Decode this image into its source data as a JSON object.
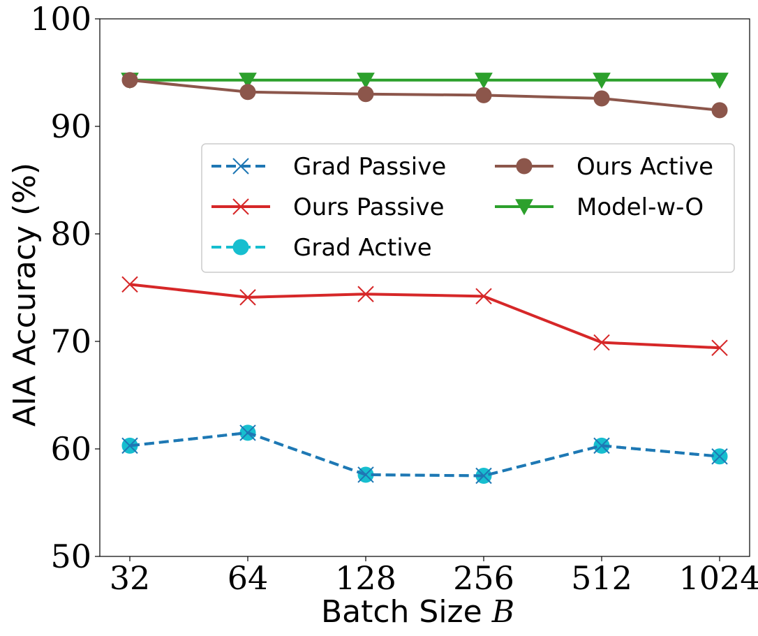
{
  "chart_data": {
    "type": "line",
    "categories": [
      "32",
      "64",
      "128",
      "256",
      "512",
      "1024"
    ],
    "xlabel": "Batch Size ",
    "xlabel_var": "B",
    "ylabel": "AIA Accuracy (%)",
    "ylim": [
      50,
      100
    ],
    "yticks": [
      "50",
      "60",
      "70",
      "80",
      "90",
      "100"
    ],
    "legend_position": "center-right",
    "series": [
      {
        "name": "Grad Passive",
        "color": "#1f77b4",
        "dash": "dashed",
        "marker": "x",
        "values": [
          60.3,
          61.5,
          57.6,
          57.5,
          60.3,
          59.3
        ]
      },
      {
        "name": "Grad Active",
        "color": "#17becf",
        "dash": "dashed",
        "marker": "circle",
        "values": [
          60.3,
          61.5,
          57.6,
          57.5,
          60.3,
          59.3
        ]
      },
      {
        "name": "Model-w-O",
        "color": "#2ca02c",
        "dash": "solid",
        "marker": "triangle-down",
        "values": [
          94.3,
          94.3,
          94.3,
          94.3,
          94.3,
          94.3
        ]
      },
      {
        "name": "Ours Passive",
        "color": "#d62728",
        "dash": "solid",
        "marker": "x",
        "values": [
          75.3,
          74.1,
          74.4,
          74.2,
          69.9,
          69.4
        ]
      },
      {
        "name": "Ours Active",
        "color": "#8c564b",
        "dash": "solid",
        "marker": "circle",
        "values": [
          94.3,
          93.2,
          93.0,
          92.9,
          92.6,
          91.5
        ]
      }
    ],
    "legend_order": [
      0,
      3,
      1,
      4,
      2
    ]
  }
}
